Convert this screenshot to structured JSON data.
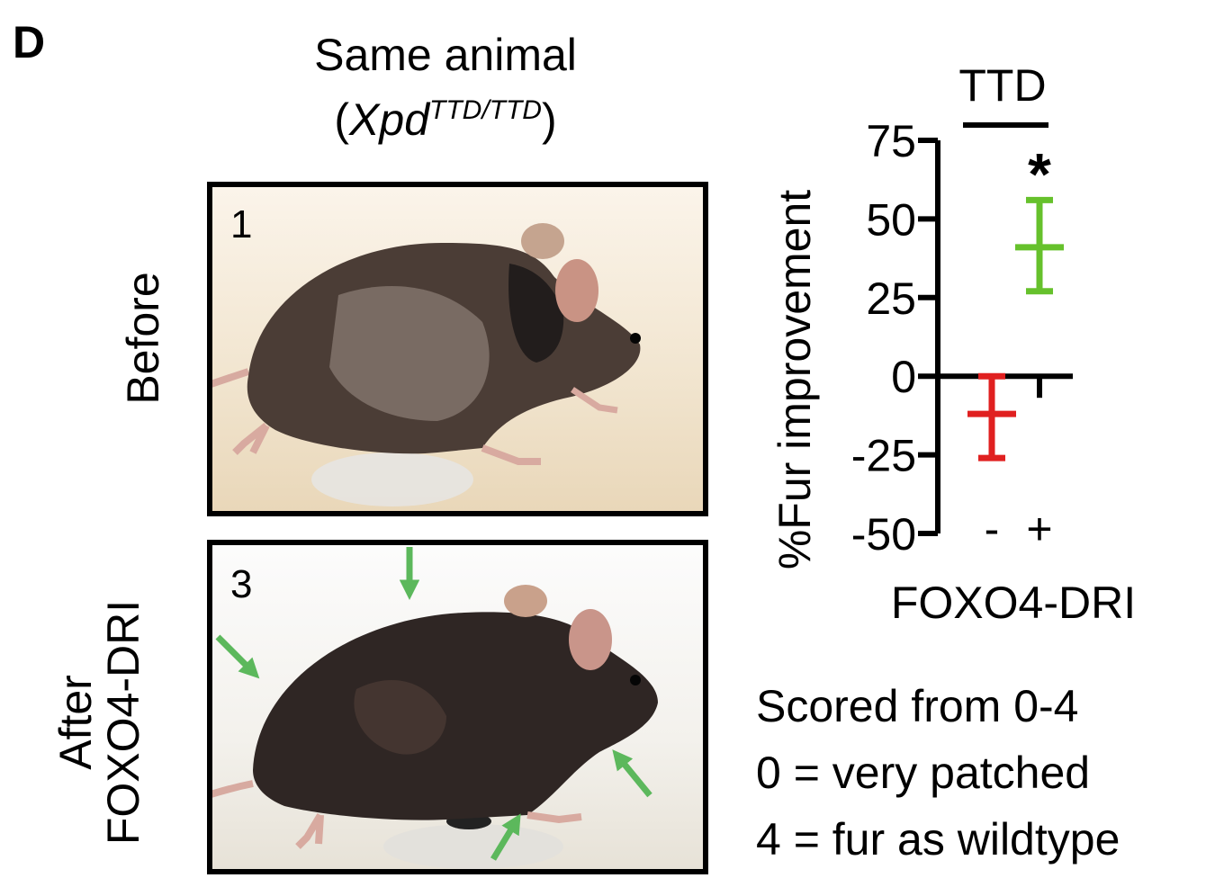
{
  "panel_label": "D",
  "header": {
    "line1": "Same animal",
    "open_paren": "(",
    "gene": "Xpd",
    "genotype_sup": "TTD/TTD",
    "close_paren": ")"
  },
  "photos": [
    {
      "number": "1",
      "side_label": "Before"
    },
    {
      "number": "3",
      "side_label_line1": "After",
      "side_label_line2": "FOXO4-DRI"
    }
  ],
  "arrow_color": "#5cb85c",
  "legend": [
    "Scored from 0-4",
    "0 = very patched",
    "4 = fur as wildtype"
  ],
  "chart_data": {
    "type": "scatter",
    "title": "TTD",
    "ylabel": "%Fur improvement",
    "xlabel": "FOXO4-DRI",
    "categories": [
      "-",
      "+"
    ],
    "ylim": [
      -50,
      75
    ],
    "yticks": [
      75,
      50,
      25,
      0,
      -25,
      -50
    ],
    "grid": false,
    "series": [
      {
        "category": "-",
        "mean": -12,
        "lower": -26,
        "upper": 0,
        "color": "#e02020"
      },
      {
        "category": "+",
        "mean": 41,
        "lower": 27,
        "upper": 56,
        "color": "#66c12c"
      }
    ],
    "significance": {
      "category": "+",
      "label": "*"
    }
  }
}
